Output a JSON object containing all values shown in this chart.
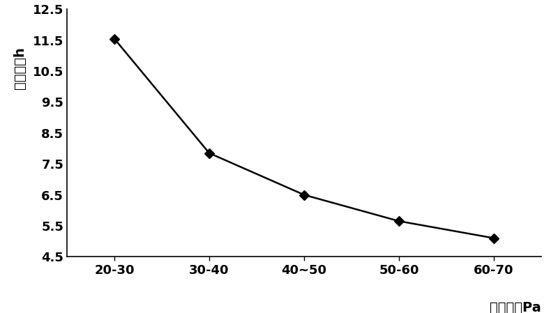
{
  "x_labels": [
    "20-30",
    "30-40",
    "40~50",
    "50-60",
    "60-70"
  ],
  "y_values": [
    11.55,
    7.85,
    6.5,
    5.65,
    5.1
  ],
  "x_positions": [
    0,
    1,
    2,
    3,
    4
  ],
  "ylim": [
    4.5,
    12.5
  ],
  "yticks": [
    4.5,
    5.5,
    6.5,
    7.5,
    8.5,
    9.5,
    10.5,
    11.5,
    12.5
  ],
  "xlabel": "空气压力Pa",
  "ylabel": "干燥时间h",
  "line_color": "#000000",
  "marker": "D",
  "marker_size": 7,
  "marker_color": "#000000",
  "linewidth": 1.8,
  "background_color": "#ffffff",
  "xlabel_fontsize": 14,
  "ylabel_fontsize": 14,
  "tick_fontsize": 13,
  "font_weight": "bold"
}
